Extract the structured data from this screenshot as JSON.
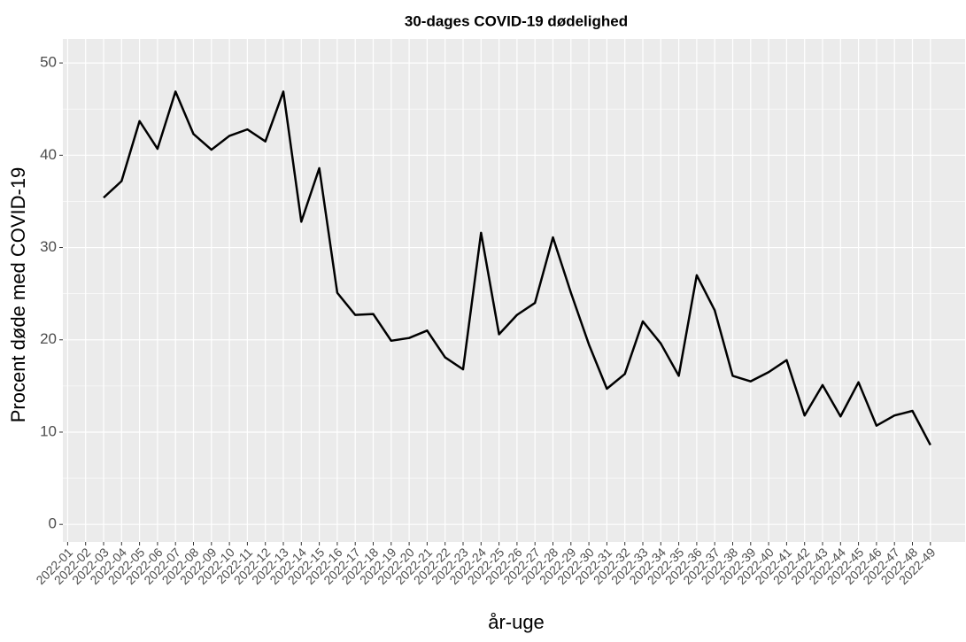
{
  "chart_data": {
    "type": "line",
    "title": "30-dages COVID-19 dødelighed",
    "x_label": "år-uge",
    "y_label": "Procent døde med COVID-19",
    "categories": [
      "2022-01",
      "2022-02",
      "2022-03",
      "2022-04",
      "2022-05",
      "2022-06",
      "2022-07",
      "2022-08",
      "2022-09",
      "2022-10",
      "2022-11",
      "2022-12",
      "2022-13",
      "2022-14",
      "2022-15",
      "2022-16",
      "2022-17",
      "2022-18",
      "2022-19",
      "2022-20",
      "2022-21",
      "2022-22",
      "2022-23",
      "2022-24",
      "2022-25",
      "2022-26",
      "2022-27",
      "2022-28",
      "2022-29",
      "2022-30",
      "2022-31",
      "2022-32",
      "2022-33",
      "2022-34",
      "2022-35",
      "2022-36",
      "2022-37",
      "2022-38",
      "2022-39",
      "2022-40",
      "2022-41",
      "2022-42",
      "2022-43",
      "2022-44",
      "2022-45",
      "2022-46",
      "2022-47",
      "2022-48",
      "2022-49"
    ],
    "values": [
      null,
      null,
      35.4,
      37.2,
      43.7,
      40.7,
      46.9,
      42.3,
      40.6,
      42.1,
      42.8,
      41.5,
      46.9,
      32.8,
      38.6,
      25.1,
      22.7,
      22.8,
      19.9,
      20.2,
      21.0,
      18.1,
      16.8,
      31.6,
      20.6,
      22.7,
      24.0,
      31.1,
      25.1,
      19.5,
      14.7,
      16.3,
      22.0,
      19.6,
      16.1,
      27.0,
      23.2,
      16.1,
      15.5,
      16.5,
      17.8,
      11.8,
      15.1,
      11.7,
      15.4,
      10.7,
      11.8,
      12.3,
      8.6
    ],
    "color": "#000000",
    "ylim": [
      -1.9,
      52.6
    ],
    "yticks": [
      0,
      10,
      20,
      30,
      40,
      50
    ],
    "grid": true
  }
}
